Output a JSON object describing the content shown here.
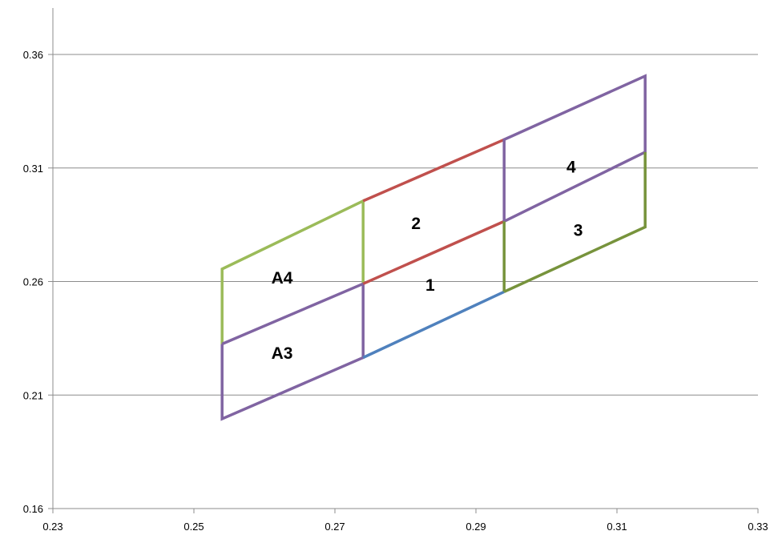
{
  "chart_data": {
    "type": "line",
    "title": "",
    "xlabel": "",
    "ylabel": "",
    "xlim": [
      0.23,
      0.33
    ],
    "ylim": [
      0.16,
      0.38
    ],
    "x_ticks": [
      "0.23",
      "0.25",
      "0.27",
      "0.29",
      "0.31",
      "0.33"
    ],
    "y_ticks": [
      "0.16",
      "0.21",
      "0.26",
      "0.31",
      "0.36"
    ],
    "grid": "horizontal",
    "legend": "none",
    "series": [
      {
        "color": "#9bbb59",
        "points": [
          [
            0.254,
            0.2325
          ],
          [
            0.254,
            0.2655
          ],
          [
            0.274,
            0.2955
          ],
          [
            0.274,
            0.259
          ]
        ]
      },
      {
        "color": "#8064a2",
        "points": [
          [
            0.254,
            0.2325
          ],
          [
            0.274,
            0.259
          ]
        ]
      },
      {
        "color": "#8064a2",
        "points": [
          [
            0.254,
            0.2325
          ],
          [
            0.254,
            0.1995
          ],
          [
            0.274,
            0.2265
          ],
          [
            0.274,
            0.259
          ]
        ]
      },
      {
        "color": "#c0504d",
        "points": [
          [
            0.274,
            0.2955
          ],
          [
            0.294,
            0.3225
          ]
        ]
      },
      {
        "color": "#c0504d",
        "points": [
          [
            0.274,
            0.259
          ],
          [
            0.294,
            0.2865
          ]
        ]
      },
      {
        "color": "#4f81bd",
        "points": [
          [
            0.274,
            0.2265
          ],
          [
            0.294,
            0.2555
          ]
        ]
      },
      {
        "color": "#8064a2",
        "points": [
          [
            0.294,
            0.2865
          ],
          [
            0.294,
            0.3225
          ],
          [
            0.314,
            0.3505
          ],
          [
            0.314,
            0.317
          ],
          [
            0.294,
            0.2865
          ]
        ]
      },
      {
        "color": "#77933c",
        "points": [
          [
            0.294,
            0.2555
          ],
          [
            0.294,
            0.2865
          ]
        ]
      },
      {
        "color": "#77933c",
        "points": [
          [
            0.294,
            0.2555
          ],
          [
            0.314,
            0.284
          ],
          [
            0.314,
            0.317
          ]
        ]
      }
    ],
    "annotations": [
      {
        "text": "A4",
        "x": 0.2625,
        "y": 0.2615
      },
      {
        "text": "A3",
        "x": 0.2625,
        "y": 0.2285
      },
      {
        "text": "2",
        "x": 0.2815,
        "y": 0.2855
      },
      {
        "text": "1",
        "x": 0.2835,
        "y": 0.2585
      },
      {
        "text": "4",
        "x": 0.3035,
        "y": 0.3105
      },
      {
        "text": "3",
        "x": 0.3045,
        "y": 0.2825
      }
    ]
  }
}
